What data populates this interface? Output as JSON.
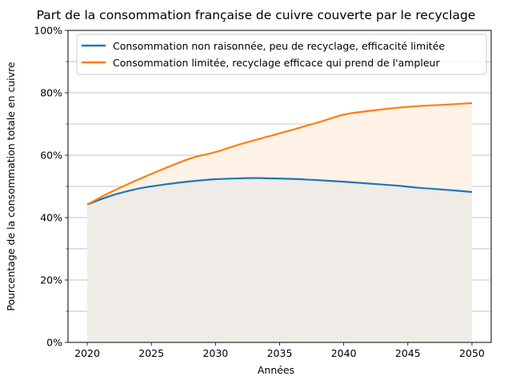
{
  "chart_data": {
    "type": "line",
    "title": "Part de la consommation française de cuivre couverte par le recyclage",
    "xlabel": "Années",
    "ylabel": "Pourcentage de la consommation totale en cuivre",
    "xlim": [
      2018.5,
      2051.5
    ],
    "ylim": [
      0,
      100
    ],
    "x_ticks": [
      2020,
      2025,
      2030,
      2035,
      2040,
      2045,
      2050
    ],
    "y_ticks": [
      0,
      20,
      40,
      60,
      80,
      100
    ],
    "y_tick_labels": [
      "0%",
      "20%",
      "40%",
      "60%",
      "80%",
      "100%"
    ],
    "y_minor_ticks": [
      10,
      30,
      50,
      70,
      90
    ],
    "grid": "horizontal",
    "legend_position": "top-right",
    "series": [
      {
        "name": "Consommation non raisonnée, peu de recyclage, efficacité limitée",
        "color": "#1f77b4",
        "fill_color": "#efebe6",
        "x": [
          2020,
          2022,
          2024,
          2025,
          2026,
          2028,
          2030,
          2032,
          2033,
          2034,
          2036,
          2038,
          2040,
          2042,
          2044,
          2045,
          2046,
          2048,
          2050
        ],
        "values": [
          44.2,
          47.2,
          49.3,
          50.0,
          50.6,
          51.6,
          52.3,
          52.6,
          52.7,
          52.6,
          52.4,
          52.0,
          51.5,
          50.9,
          50.3,
          49.9,
          49.5,
          48.9,
          48.2
        ]
      },
      {
        "name": "Consommation limitée, recyclage efficace qui prend de l'ampleur",
        "color": "#ff7f0e",
        "fill_color": "#fff2e7",
        "x": [
          2020,
          2022,
          2025,
          2028,
          2030,
          2032,
          2035,
          2038,
          2040,
          2042,
          2045,
          2048,
          2050
        ],
        "values": [
          44.2,
          48.5,
          54.0,
          58.9,
          61.0,
          63.6,
          67.0,
          70.5,
          73.0,
          74.2,
          75.5,
          76.2,
          76.7
        ]
      }
    ]
  }
}
